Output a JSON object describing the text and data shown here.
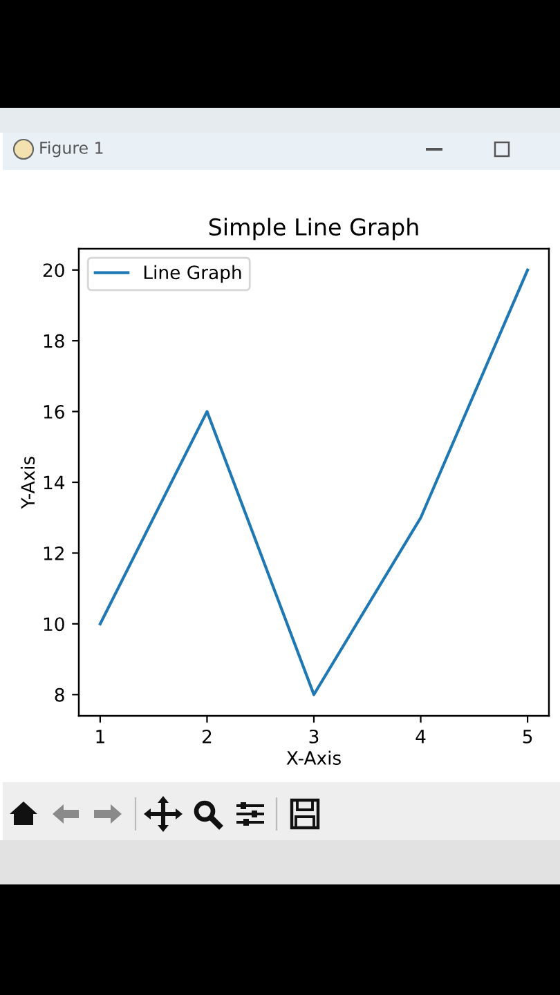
{
  "chart_data": {
    "type": "line",
    "title": "Simple Line Graph",
    "xlabel": "X-Axis",
    "ylabel": "Y-Axis",
    "x": [
      1,
      2,
      3,
      4,
      5
    ],
    "series": [
      {
        "name": "Line Graph",
        "color": "#1f77b4",
        "values": [
          10,
          16,
          8,
          13,
          20
        ]
      }
    ],
    "xlim": [
      0.8,
      5.2
    ],
    "ylim": [
      7.4,
      20.6
    ],
    "xticks": [
      1,
      2,
      3,
      4,
      5
    ],
    "yticks": [
      8,
      10,
      12,
      14,
      16,
      18,
      20
    ],
    "legend": "top left",
    "annotations": [
      "Figure 1"
    ]
  }
}
